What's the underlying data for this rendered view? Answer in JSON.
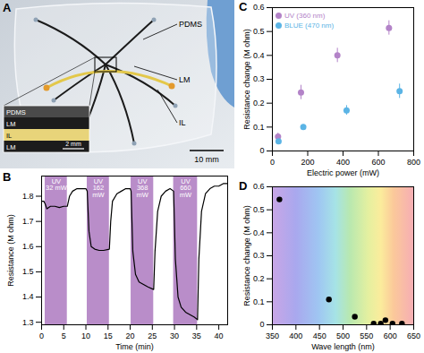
{
  "figure_a": {
    "panel_label": "A",
    "labels": [
      "PDMS",
      "LM",
      "IL"
    ],
    "scale_bar": "10 mm",
    "inset": {
      "layers": [
        "PDMS",
        "LM",
        "IL",
        "LM"
      ],
      "scale_bar": "2 mm"
    }
  },
  "chart_data": [
    {
      "panel_label": "B",
      "type": "line",
      "xlabel": "Time (min)",
      "ylabel": "Resistance (M ohm)",
      "x": [
        0,
        0.5,
        0.8,
        1.2,
        2,
        3,
        4,
        5,
        5.8,
        6.3,
        7,
        8,
        9,
        10,
        10.3,
        10.7,
        11.2,
        12,
        13,
        14,
        15.3,
        15.6,
        16,
        17,
        18,
        19,
        20,
        20.2,
        20.6,
        21.2,
        22,
        23,
        24,
        25.3,
        25.6,
        26.2,
        27,
        28,
        29,
        29.8,
        30.2,
        30.8,
        31.5,
        32.5,
        33.5,
        34.5,
        35.2,
        35.5,
        36.1,
        37,
        38,
        39,
        40,
        41,
        42
      ],
      "values": [
        1.78,
        1.78,
        1.77,
        1.75,
        1.76,
        1.76,
        1.755,
        1.76,
        1.76,
        1.8,
        1.82,
        1.83,
        1.83,
        1.83,
        1.82,
        1.66,
        1.6,
        1.59,
        1.585,
        1.585,
        1.59,
        1.7,
        1.78,
        1.81,
        1.82,
        1.83,
        1.83,
        1.82,
        1.58,
        1.49,
        1.46,
        1.45,
        1.44,
        1.43,
        1.58,
        1.74,
        1.8,
        1.82,
        1.83,
        1.82,
        1.55,
        1.4,
        1.36,
        1.34,
        1.33,
        1.32,
        1.31,
        1.55,
        1.74,
        1.81,
        1.83,
        1.84,
        1.84,
        1.85,
        1.85
      ],
      "color": "#000000",
      "xlim": [
        0,
        42
      ],
      "ylim": [
        1.29,
        1.88
      ],
      "xticks": [
        0,
        5,
        10,
        15,
        20,
        25,
        30,
        35,
        40
      ],
      "yticks": [
        1.3,
        1.4,
        1.5,
        1.6,
        1.7,
        1.8
      ],
      "shaded_regions": [
        {
          "x_start": 0.8,
          "x_end": 5.8,
          "text": "UV\n32 mW"
        },
        {
          "x_start": 10.3,
          "x_end": 15.3,
          "text": "UV\n162\nmW"
        },
        {
          "x_start": 20.2,
          "x_end": 25.3,
          "text": "UV\n368\nmW"
        },
        {
          "x_start": 29.8,
          "x_end": 35.2,
          "text": "UV\n660\nmW"
        }
      ]
    },
    {
      "panel_label": "C",
      "type": "scatter",
      "xlabel": "Electric power (mW)",
      "ylabel": "Resistance change (M ohm)",
      "xlim": [
        0,
        800
      ],
      "ylim": [
        0,
        0.6
      ],
      "xticks": [
        0,
        200,
        400,
        600,
        800
      ],
      "yticks": [
        0,
        0.1,
        0.2,
        0.3,
        0.4,
        0.5,
        0.6
      ],
      "legend": "top-left",
      "series": [
        {
          "name": "UV (360 nm)",
          "color": "#b383c8",
          "x": [
            32,
            162,
            368,
            660
          ],
          "values": [
            0.06,
            0.245,
            0.4,
            0.515
          ],
          "error": [
            0.015,
            0.03,
            0.03,
            0.03
          ]
        },
        {
          "name": "BLUE (470 nm)",
          "color": "#5bb4e5",
          "x": [
            35,
            175,
            420,
            720
          ],
          "values": [
            0.04,
            0.1,
            0.17,
            0.25
          ],
          "error": [
            0.01,
            0.01,
            0.02,
            0.03
          ]
        }
      ]
    },
    {
      "panel_label": "D",
      "type": "scatter",
      "xlabel": "Wave length (nm)",
      "ylabel": "Resistance change (M ohm)",
      "x": [
        365,
        470,
        525,
        565,
        580,
        590,
        605,
        625
      ],
      "values": [
        0.545,
        0.11,
        0.035,
        0.005,
        0.005,
        0.02,
        0.005,
        0.005
      ],
      "color": "#000000",
      "xlim": [
        350,
        650
      ],
      "ylim": [
        0,
        0.6
      ],
      "xticks": [
        350,
        400,
        450,
        500,
        550,
        600,
        650
      ],
      "yticks": [
        0,
        0.1,
        0.2,
        0.3,
        0.4,
        0.5,
        0.6
      ]
    }
  ]
}
